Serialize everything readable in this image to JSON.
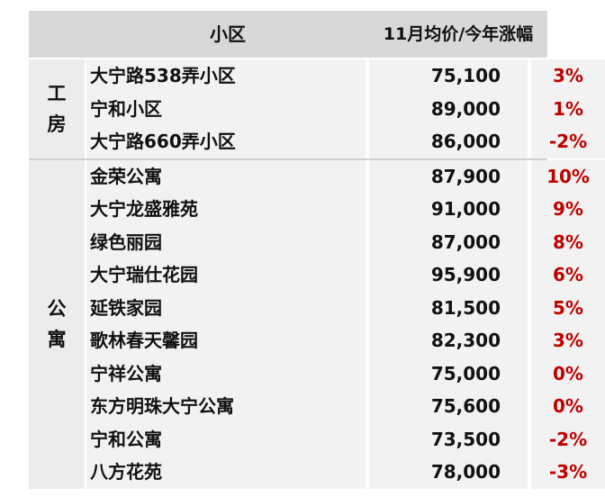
{
  "header": {
    "name": "小区",
    "price": "11月均价/今年涨幅"
  },
  "groups": [
    {
      "category": "工房",
      "rows": [
        {
          "name": "大宁路538弄小区",
          "price": "75,100",
          "change": "3%"
        },
        {
          "name": "宁和小区",
          "price": "89,000",
          "change": "1%"
        },
        {
          "name": "大宁路660弄小区",
          "price": "86,000",
          "change": "-2%"
        }
      ]
    },
    {
      "category": "公寓",
      "rows": [
        {
          "name": "金荣公寓",
          "price": "87,900",
          "change": "10%"
        },
        {
          "name": "大宁龙盛雅苑",
          "price": "91,000",
          "change": "9%"
        },
        {
          "name": "绿色丽园",
          "price": "87,000",
          "change": "8%"
        },
        {
          "name": "大宁瑞仕花园",
          "price": "95,900",
          "change": "6%"
        },
        {
          "name": "延铁家园",
          "price": "81,500",
          "change": "5%"
        },
        {
          "name": "歌林春天馨园",
          "price": "82,300",
          "change": "3%"
        },
        {
          "name": "宁祥公寓",
          "price": "75,000",
          "change": "0%"
        },
        {
          "name": "东方明珠大宁公寓",
          "price": "75,600",
          "change": "0%"
        },
        {
          "name": "宁和公寓",
          "price": "73,500",
          "change": "-2%"
        },
        {
          "name": "八方花苑",
          "price": "78,000",
          "change": "-3%"
        }
      ]
    }
  ],
  "colors": {
    "change_text": "#c00000",
    "header_bg": "#d8d8d8",
    "cell_bg": "#f2f2f2"
  }
}
